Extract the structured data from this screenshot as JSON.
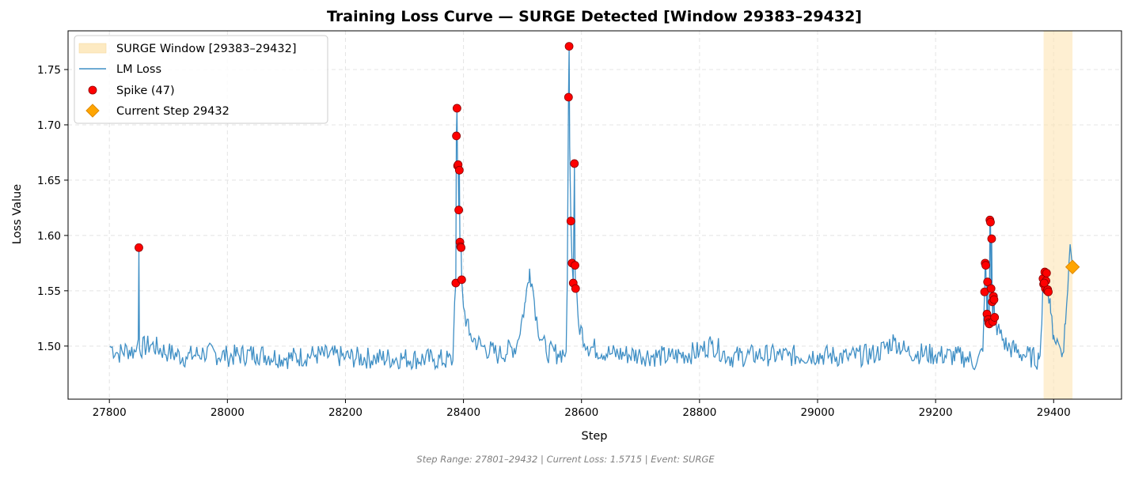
{
  "chart_data": {
    "type": "line",
    "title": "Training Loss Curve — SURGE Detected [Window 29383–29432]",
    "xlabel": "Step",
    "ylabel": "Loss Value",
    "xlim": [
      27730,
      29515
    ],
    "ylim": [
      1.452,
      1.785
    ],
    "xticks": [
      27800,
      28000,
      28200,
      28400,
      28600,
      28800,
      29000,
      29200,
      29400
    ],
    "yticks": [
      1.5,
      1.55,
      1.6,
      1.65,
      1.7,
      1.75
    ],
    "ytick_labels": [
      "1.50",
      "1.55",
      "1.60",
      "1.65",
      "1.70",
      "1.75"
    ],
    "grid": true,
    "legend_position": "top-left",
    "surge_window": {
      "label": "SURGE Window [29383–29432]",
      "start": 29383,
      "end": 29432,
      "color": "#fde5b4"
    },
    "series": [
      {
        "name": "LM Loss",
        "color": "#3f8fc5",
        "points": [
          [
            27801,
            1.5
          ],
          [
            27815,
            1.493
          ],
          [
            27830,
            1.497
          ],
          [
            27845,
            1.495
          ],
          [
            27849,
            1.506
          ],
          [
            27850,
            1.589
          ],
          [
            27851,
            1.498
          ],
          [
            27870,
            1.501
          ],
          [
            27900,
            1.494
          ],
          [
            27930,
            1.49
          ],
          [
            27960,
            1.494
          ],
          [
            28000,
            1.491
          ],
          [
            28050,
            1.493
          ],
          [
            28100,
            1.489
          ],
          [
            28150,
            1.492
          ],
          [
            28200,
            1.49
          ],
          [
            28250,
            1.489
          ],
          [
            28300,
            1.489
          ],
          [
            28350,
            1.488
          ],
          [
            28382,
            1.487
          ],
          [
            28385,
            1.54
          ],
          [
            28387,
            1.557
          ],
          [
            28388,
            1.69
          ],
          [
            28389,
            1.715
          ],
          [
            28390,
            1.663
          ],
          [
            28391,
            1.664
          ],
          [
            28392,
            1.623
          ],
          [
            28393,
            1.659
          ],
          [
            28394,
            1.594
          ],
          [
            28395,
            1.59
          ],
          [
            28396,
            1.589
          ],
          [
            28397,
            1.56
          ],
          [
            28400,
            1.535
          ],
          [
            28410,
            1.51
          ],
          [
            28430,
            1.5
          ],
          [
            28460,
            1.492
          ],
          [
            28490,
            1.5
          ],
          [
            28505,
            1.54
          ],
          [
            28512,
            1.57
          ],
          [
            28518,
            1.55
          ],
          [
            28525,
            1.52
          ],
          [
            28540,
            1.495
          ],
          [
            28560,
            1.493
          ],
          [
            28574,
            1.495
          ],
          [
            28576,
            1.56
          ],
          [
            28578,
            1.725
          ],
          [
            28579,
            1.771
          ],
          [
            28580,
            1.68
          ],
          [
            28582,
            1.613
          ],
          [
            28584,
            1.575
          ],
          [
            28586,
            1.557
          ],
          [
            28588,
            1.665
          ],
          [
            28589,
            1.573
          ],
          [
            28590,
            1.552
          ],
          [
            28595,
            1.52
          ],
          [
            28610,
            1.5
          ],
          [
            28650,
            1.493
          ],
          [
            28700,
            1.492
          ],
          [
            28750,
            1.49
          ],
          [
            28800,
            1.495
          ],
          [
            28820,
            1.502
          ],
          [
            28850,
            1.49
          ],
          [
            28900,
            1.492
          ],
          [
            28950,
            1.491
          ],
          [
            29000,
            1.492
          ],
          [
            29050,
            1.49
          ],
          [
            29100,
            1.493
          ],
          [
            29130,
            1.505
          ],
          [
            29150,
            1.495
          ],
          [
            29200,
            1.492
          ],
          [
            29250,
            1.49
          ],
          [
            29270,
            1.485
          ],
          [
            29280,
            1.495
          ],
          [
            29283,
            1.549
          ],
          [
            29284,
            1.575
          ],
          [
            29285,
            1.573
          ],
          [
            29287,
            1.529
          ],
          [
            29288,
            1.558
          ],
          [
            29289,
            1.524
          ],
          [
            29290,
            1.521
          ],
          [
            29291,
            1.52
          ],
          [
            29292,
            1.614
          ],
          [
            29293,
            1.612
          ],
          [
            29294,
            1.552
          ],
          [
            29295,
            1.597
          ],
          [
            29296,
            1.54
          ],
          [
            29297,
            1.522
          ],
          [
            29298,
            1.545
          ],
          [
            29299,
            1.542
          ],
          [
            29300,
            1.526
          ],
          [
            29305,
            1.515
          ],
          [
            29320,
            1.5
          ],
          [
            29350,
            1.492
          ],
          [
            29375,
            1.488
          ],
          [
            29380,
            1.52
          ],
          [
            29382,
            1.561
          ],
          [
            29383,
            1.556
          ],
          [
            29385,
            1.567
          ],
          [
            29386,
            1.552
          ],
          [
            29387,
            1.559
          ],
          [
            29388,
            1.566
          ],
          [
            29389,
            1.55
          ],
          [
            29390,
            1.551
          ],
          [
            29395,
            1.53
          ],
          [
            29400,
            1.51
          ],
          [
            29410,
            1.5
          ],
          [
            29415,
            1.493
          ],
          [
            29420,
            1.52
          ],
          [
            29428,
            1.592
          ],
          [
            29432,
            1.5715
          ]
        ]
      }
    ],
    "spikes": {
      "name": "Spike (47)",
      "color": "#ff0000",
      "points": [
        [
          27850,
          1.589
        ],
        [
          28387,
          1.557
        ],
        [
          28388,
          1.69
        ],
        [
          28389,
          1.715
        ],
        [
          28390,
          1.663
        ],
        [
          28391,
          1.664
        ],
        [
          28392,
          1.623
        ],
        [
          28393,
          1.659
        ],
        [
          28394,
          1.594
        ],
        [
          28395,
          1.59
        ],
        [
          28396,
          1.589
        ],
        [
          28397,
          1.56
        ],
        [
          28578,
          1.725
        ],
        [
          28579,
          1.771
        ],
        [
          28582,
          1.613
        ],
        [
          28584,
          1.575
        ],
        [
          28586,
          1.557
        ],
        [
          28588,
          1.665
        ],
        [
          28589,
          1.573
        ],
        [
          28590,
          1.552
        ],
        [
          29283,
          1.549
        ],
        [
          29284,
          1.575
        ],
        [
          29285,
          1.573
        ],
        [
          29287,
          1.529
        ],
        [
          29288,
          1.558
        ],
        [
          29289,
          1.524
        ],
        [
          29290,
          1.521
        ],
        [
          29291,
          1.52
        ],
        [
          29292,
          1.614
        ],
        [
          29293,
          1.612
        ],
        [
          29294,
          1.552
        ],
        [
          29295,
          1.597
        ],
        [
          29296,
          1.54
        ],
        [
          29297,
          1.522
        ],
        [
          29298,
          1.545
        ],
        [
          29299,
          1.542
        ],
        [
          29300,
          1.526
        ],
        [
          29382,
          1.561
        ],
        [
          29383,
          1.556
        ],
        [
          29385,
          1.567
        ],
        [
          29386,
          1.552
        ],
        [
          29387,
          1.559
        ],
        [
          29388,
          1.566
        ],
        [
          29389,
          1.55
        ],
        [
          29390,
          1.551
        ],
        [
          29384,
          1.557
        ],
        [
          29391,
          1.549
        ]
      ]
    },
    "current_step": {
      "name": "Current Step 29432",
      "step": 29432,
      "value": 1.5715,
      "color": "#ffa500"
    },
    "footer": "Step Range: 27801–29432 | Current Loss: 1.5715 | Event: SURGE"
  }
}
